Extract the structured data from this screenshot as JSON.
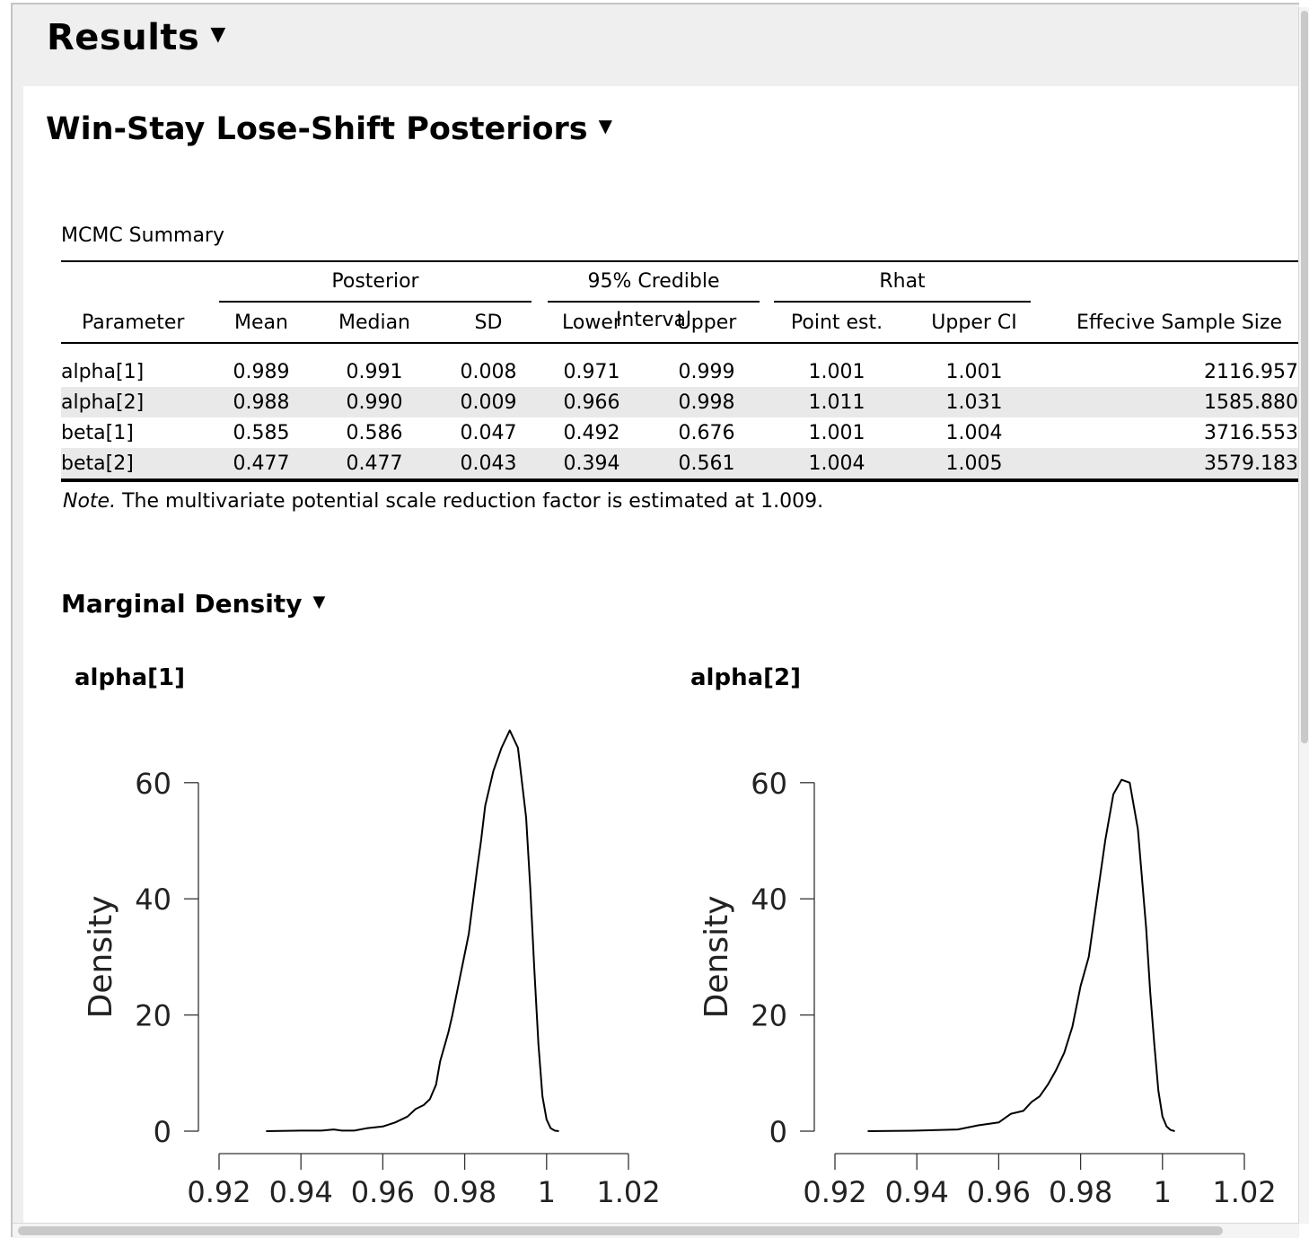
{
  "results_title": "Results",
  "section_title": "Win-Stay Lose-Shift Posteriors",
  "table": {
    "title": "MCMC Summary",
    "groups": {
      "posterior": "Posterior",
      "ci": "95% Credible Interval",
      "rhat": "Rhat"
    },
    "columns": [
      "Parameter",
      "Mean",
      "Median",
      "SD",
      "Lower",
      "Upper",
      "Point est.",
      "Upper CI",
      "Effecive Sample Size"
    ],
    "rows": [
      [
        "alpha[1]",
        "0.989",
        "0.991",
        "0.008",
        "0.971",
        "0.999",
        "1.001",
        "1.001",
        "2116.957"
      ],
      [
        "alpha[2]",
        "0.988",
        "0.990",
        "0.009",
        "0.966",
        "0.998",
        "1.011",
        "1.031",
        "1585.880"
      ],
      [
        "beta[1]",
        "0.585",
        "0.586",
        "0.047",
        "0.492",
        "0.676",
        "1.001",
        "1.004",
        "3716.553"
      ],
      [
        "beta[2]",
        "0.477",
        "0.477",
        "0.043",
        "0.394",
        "0.561",
        "1.004",
        "1.005",
        "3579.183"
      ]
    ],
    "note_label": "Note.",
    "note_text": " The multivariate potential scale reduction factor is estimated at 1.009."
  },
  "marginal_title": "Marginal Density",
  "chart_data": [
    {
      "type": "line",
      "title": "alpha[1]",
      "xlabel": "",
      "ylabel": "Density",
      "xlim": [
        0.92,
        1.02
      ],
      "ylim": [
        0,
        70
      ],
      "xticks": [
        "0.92",
        "0.94",
        "0.96",
        "0.98",
        "1",
        "1.02"
      ],
      "yticks": [
        "0",
        "20",
        "40",
        "60"
      ],
      "x": [
        0.9315,
        0.94,
        0.945,
        0.948,
        0.95,
        0.953,
        0.956,
        0.96,
        0.963,
        0.966,
        0.968,
        0.97,
        0.9715,
        0.973,
        0.974,
        0.975,
        0.976,
        0.977,
        0.979,
        0.981,
        0.983,
        0.984,
        0.985,
        0.987,
        0.989,
        0.991,
        0.993,
        0.995,
        0.996,
        0.997,
        0.998,
        0.999,
        1.0,
        1.001,
        1.002,
        1.003
      ],
      "y": [
        0,
        0.1,
        0.1,
        0.3,
        0.1,
        0.1,
        0.5,
        0.8,
        1.5,
        2.5,
        3.8,
        4.5,
        5.5,
        8,
        12,
        14.5,
        17,
        20,
        27,
        34,
        45,
        50,
        56,
        62,
        66,
        69,
        66,
        54,
        42,
        28,
        15,
        6,
        2,
        0.5,
        0.1,
        0
      ]
    },
    {
      "type": "line",
      "title": "alpha[2]",
      "xlabel": "",
      "ylabel": "Density",
      "xlim": [
        0.92,
        1.02
      ],
      "ylim": [
        0,
        70
      ],
      "xticks": [
        "0.92",
        "0.94",
        "0.96",
        "0.98",
        "1",
        "1.02"
      ],
      "yticks": [
        "0",
        "20",
        "40",
        "60"
      ],
      "x": [
        0.928,
        0.94,
        0.945,
        0.95,
        0.955,
        0.96,
        0.963,
        0.966,
        0.968,
        0.97,
        0.972,
        0.974,
        0.976,
        0.978,
        0.98,
        0.982,
        0.984,
        0.986,
        0.988,
        0.99,
        0.992,
        0.994,
        0.996,
        0.997,
        0.998,
        0.999,
        1.0,
        1.001,
        1.002,
        1.003
      ],
      "y": [
        0,
        0.1,
        0.2,
        0.3,
        1.0,
        1.5,
        3.0,
        3.5,
        5.0,
        6.0,
        8.0,
        10.5,
        13.5,
        18,
        25,
        30,
        40,
        50,
        58,
        60.5,
        60,
        52,
        35,
        24,
        15,
        7,
        2.5,
        0.8,
        0.2,
        0
      ]
    }
  ]
}
